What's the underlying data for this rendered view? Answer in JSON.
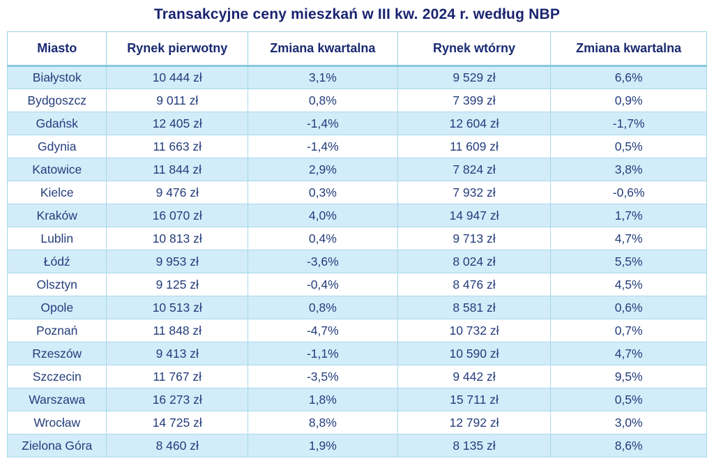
{
  "title": "Transakcyjne ceny mieszkań w III kw. 2024 r. według NBP",
  "colors": {
    "title_text": "#1a2470",
    "cell_text": "#243d7c",
    "zebra_row": "#d3ecf9",
    "border": "#9ad2e6",
    "header_underline": "#86cade",
    "background": "#ffffff"
  },
  "chart_data": {
    "type": "table",
    "title": "Transakcyjne ceny mieszkań w III kw. 2024 r. według NBP",
    "columns": [
      "Miasto",
      "Rynek pierwotny",
      "Zmiana kwartalna",
      "Rynek wtórny",
      "Zmiana kwartalna"
    ],
    "rows": [
      [
        "Białystok",
        "10 444 zł",
        "3,1%",
        "9 529 zł",
        "6,6%"
      ],
      [
        "Bydgoszcz",
        "9 011 zł",
        "0,8%",
        "7 399 zł",
        "0,9%"
      ],
      [
        "Gdańsk",
        "12 405 zł",
        "-1,4%",
        "12 604 zł",
        "-1,7%"
      ],
      [
        "Gdynia",
        "11 663 zł",
        "-1,4%",
        "11 609 zł",
        "0,5%"
      ],
      [
        "Katowice",
        "11 844 zł",
        "2,9%",
        "7 824 zł",
        "3,8%"
      ],
      [
        "Kielce",
        "9 476 zł",
        "0,3%",
        "7 932 zł",
        "-0,6%"
      ],
      [
        "Kraków",
        "16 070 zł",
        "4,0%",
        "14 947 zł",
        "1,7%"
      ],
      [
        "Lublin",
        "10 813 zł",
        "0,4%",
        "9 713 zł",
        "4,7%"
      ],
      [
        "Łódź",
        "9 953 zł",
        "-3,6%",
        "8 024 zł",
        "5,5%"
      ],
      [
        "Olsztyn",
        "9 125 zł",
        "-0,4%",
        "8 476 zł",
        "4,5%"
      ],
      [
        "Opole",
        "10 513 zł",
        "0,8%",
        "8 581 zł",
        "0,6%"
      ],
      [
        "Poznań",
        "11 848 zł",
        "-4,7%",
        "10 732 zł",
        "0,7%"
      ],
      [
        "Rzeszów",
        "9 413 zł",
        "-1,1%",
        "10 590 zł",
        "4,7%"
      ],
      [
        "Szczecin",
        "11 767 zł",
        "-3,5%",
        "9 442 zł",
        "9,5%"
      ],
      [
        "Warszawa",
        "16 273 zł",
        "1,8%",
        "15 711 zł",
        "0,5%"
      ],
      [
        "Wrocław",
        "14 725 zł",
        "8,8%",
        "12 792 zł",
        "3,0%"
      ],
      [
        "Zielona Góra",
        "8 460 zł",
        "1,9%",
        "8 135 zł",
        "8,6%"
      ]
    ]
  }
}
